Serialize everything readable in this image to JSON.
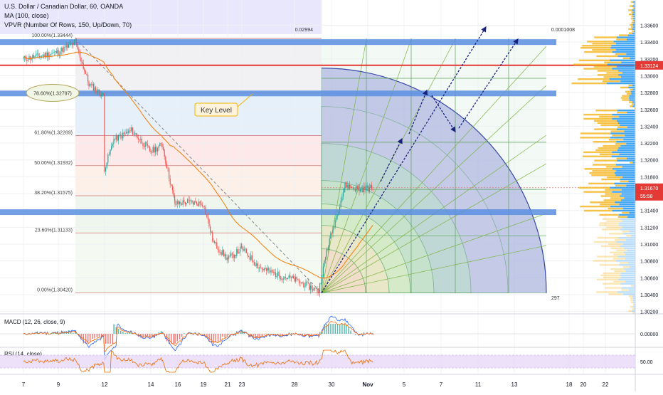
{
  "header": {
    "symbol_line": "U.S. Dollar / Canadian Dollar, 60, OANDA",
    "ma_line": "MA (100, close)",
    "vpvr_line": "VPVR (Number Of Rows, 150, Up/Down, 70)"
  },
  "colors": {
    "bull_candle": "#26a69a",
    "bear_candle": "#ef5350",
    "ma": "#f57c00",
    "key_band": "#5b8fe0",
    "red_line": "#e53935",
    "arrow": "#1a237e",
    "vpvr_up": "#f5b928",
    "vpvr_down": "#2196f3",
    "rsi_band": "#e9d8f7",
    "fib_fan": "#4caf50"
  },
  "chart_data": [
    {
      "type": "candlestick",
      "panel": "price",
      "ylim": [
        1.3018,
        1.339
      ],
      "y_ticks": [
        "1.33600",
        "1.33400",
        "1.33200",
        "1.33000",
        "1.32800",
        "1.32600",
        "1.32400",
        "1.32200",
        "1.32000",
        "1.31800",
        "1.31600",
        "1.31400",
        "1.31200",
        "1.31000",
        "1.30800",
        "1.30600",
        "1.30400",
        "1.30200"
      ],
      "x_ticks": [
        "7",
        "9",
        "12",
        "14",
        "16",
        "19",
        "21",
        "23",
        "28",
        "30",
        "Nov",
        "5",
        "7",
        "11",
        "13",
        "18",
        "20",
        "22"
      ],
      "path_anchors": [
        {
          "x": "7",
          "y": 1.332
        },
        {
          "x": "9",
          "y": 1.3328
        },
        {
          "x": "10",
          "y": 1.334
        },
        {
          "x": "11",
          "y": 1.329
        },
        {
          "x": "12",
          "y": 1.3275
        },
        {
          "x": "13",
          "y": 1.319
        },
        {
          "x": "14",
          "y": 1.3224
        },
        {
          "x": "15",
          "y": 1.3235
        },
        {
          "x": "16",
          "y": 1.321
        },
        {
          "x": "17",
          "y": 1.3218
        },
        {
          "x": "18",
          "y": 1.3148
        },
        {
          "x": "19",
          "y": 1.315
        },
        {
          "x": "20",
          "y": 1.3148
        },
        {
          "x": "21",
          "y": 1.3102
        },
        {
          "x": "22",
          "y": 1.3082
        },
        {
          "x": "23",
          "y": 1.3095
        },
        {
          "x": "24",
          "y": 1.3072
        },
        {
          "x": "27",
          "y": 1.3062
        },
        {
          "x": "28",
          "y": 1.3058
        },
        {
          "x": "29",
          "y": 1.3044
        },
        {
          "x": "29b",
          "y": 1.3095
        },
        {
          "x": "30",
          "y": 1.317
        },
        {
          "x": "31",
          "y": 1.3165
        },
        {
          "x": "Nov",
          "y": 1.3167
        }
      ],
      "last_price_label": "1.31670",
      "countdown_label": "55:58",
      "key_level_price_label": "1.33124",
      "fib_levels": [
        {
          "label": "100.00%(1.33444)",
          "value": 1.33444
        },
        {
          "label": "78.60%(1.32797)",
          "value": 1.32797
        },
        {
          "label": "61.80%(1.32289)",
          "value": 1.32289
        },
        {
          "label": "50.00%(1.31932)",
          "value": 1.31932
        },
        {
          "label": "38.20%(1.31575)",
          "value": 1.31575
        },
        {
          "label": "23.60%(1.31133)",
          "value": 1.31133
        },
        {
          "label": "0.00%(1.30420)",
          "value": 1.3042
        }
      ],
      "key_bands": [
        1.334,
        1.3279,
        1.3138
      ],
      "key_level_callout": "Key Level",
      "gann_labels": {
        "top_left": "0.02994",
        "top_right": "0.0001008",
        "bottom": "297"
      }
    },
    {
      "type": "line",
      "panel": "macd",
      "title": "MACD (12, 26, close, 9)",
      "y_ticks": [
        "0.00000"
      ]
    },
    {
      "type": "line",
      "panel": "rsi",
      "title": "RSI (14, close)",
      "y_ticks": [
        "50.00"
      ]
    }
  ]
}
